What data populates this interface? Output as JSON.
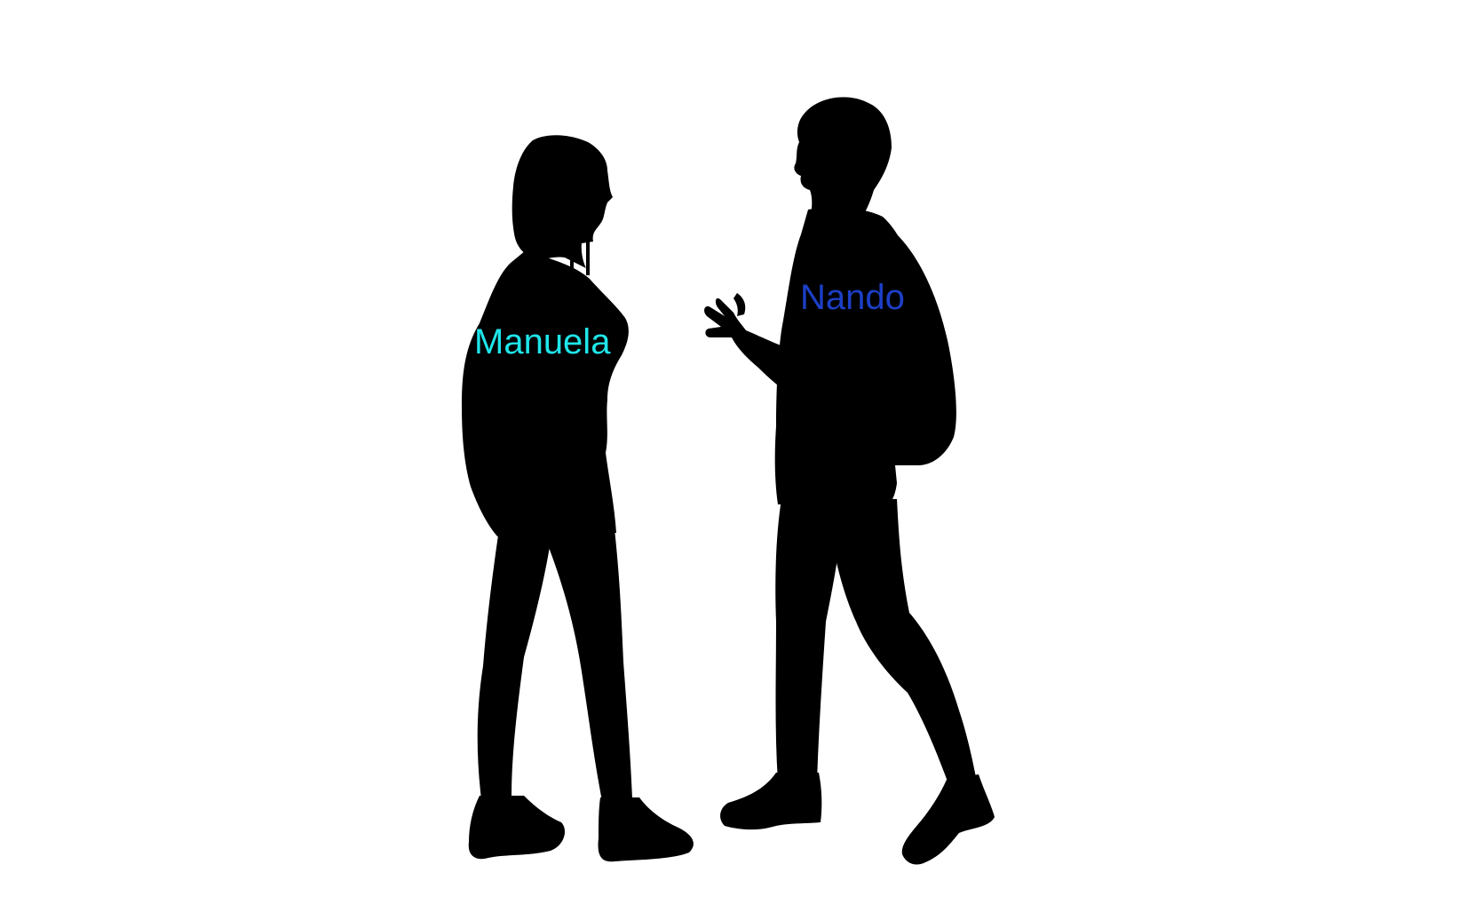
{
  "people": [
    {
      "id": "manuela",
      "name": "Manuela",
      "label_color": "#1ee6ea",
      "figure": "woman-silhouette"
    },
    {
      "id": "nando",
      "name": "Nando",
      "label_color": "#1c3fc6",
      "figure": "man-silhouette-with-backpack"
    }
  ],
  "colors": {
    "background": "#ffffff",
    "silhouette": "#000000"
  }
}
